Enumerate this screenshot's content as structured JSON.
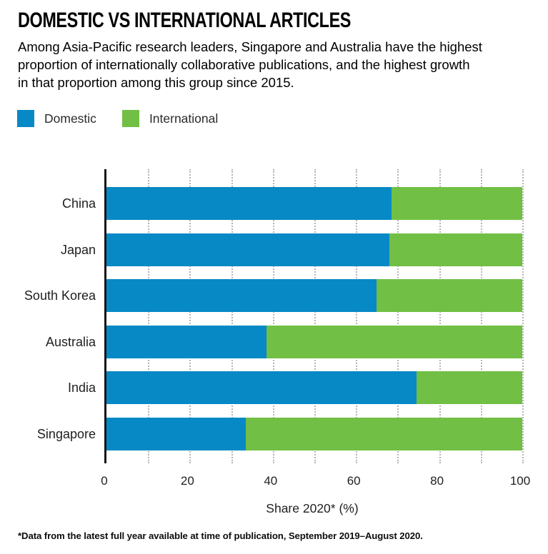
{
  "header": {
    "title": "DOMESTIC VS INTERNATIONAL ARTICLES",
    "subtitle_lines": [
      "Among Asia-Pacific research leaders, Singapore and Australia have the highest",
      "proportion of internationally collaborative publications, and the highest growth",
      "in that proportion among this group since 2015."
    ]
  },
  "legend": {
    "items": [
      {
        "label": "Domestic",
        "color": "#0789c6"
      },
      {
        "label": "International",
        "color": "#71bf44"
      }
    ]
  },
  "colors": {
    "domestic": "#0789c6",
    "international": "#71bf44",
    "axis": "#161616",
    "grid": "#b5b5b5"
  },
  "chart_data": {
    "type": "bar",
    "orientation": "horizontal",
    "stacked": true,
    "categories": [
      "China",
      "Japan",
      "South Korea",
      "Australia",
      "India",
      "Singapore"
    ],
    "series": [
      {
        "name": "Domestic",
        "color": "#0789c6",
        "values": [
          68.5,
          68,
          65,
          38.5,
          74.5,
          33.5
        ]
      },
      {
        "name": "International",
        "color": "#71bf44",
        "values": [
          31.5,
          32,
          35,
          61.5,
          25.5,
          66.5
        ]
      }
    ],
    "title": "DOMESTIC VS INTERNATIONAL ARTICLES",
    "xlabel": "Share 2020* (%)",
    "ylabel": "",
    "xlim": [
      0,
      100
    ],
    "xticks": [
      0,
      20,
      40,
      60,
      80,
      100
    ],
    "grid": "vertical dotted lines every 10 units",
    "legend_position": "top-left above plot"
  },
  "footnote": "*Data from the latest full year available at time of publication, September 2019–August 2020."
}
